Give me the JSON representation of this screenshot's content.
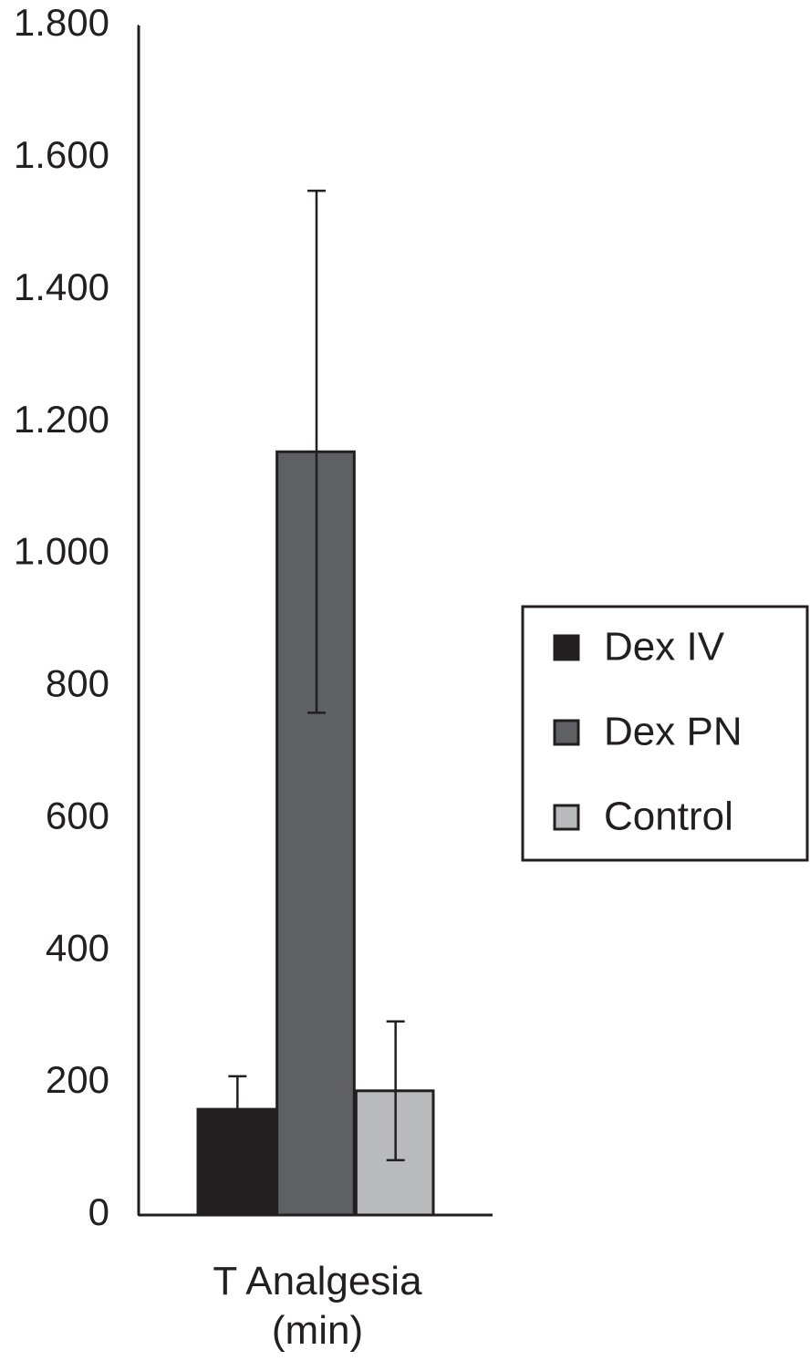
{
  "chart_data": {
    "type": "bar",
    "categories": [
      "T Analgesia (min)"
    ],
    "series": [
      {
        "name": "Dex IV",
        "color": "#231f20",
        "values": [
          160
        ],
        "errors": [
          50
        ]
      },
      {
        "name": "Dex PN",
        "color": "#5e6064",
        "values": [
          1155
        ],
        "errors": [
          395
        ]
      },
      {
        "name": "Control",
        "color": "#b9babb",
        "values": [
          188
        ],
        "errors": [
          105
        ]
      }
    ],
    "ylim": [
      0,
      1800
    ],
    "yticks": [
      0,
      200,
      400,
      600,
      800,
      {
        "value": 1000,
        "label": "1.000"
      },
      {
        "value": 1200,
        "label": "1.200"
      },
      {
        "value": 1400,
        "label": "1.400"
      },
      {
        "value": 1600,
        "label": "1.600"
      },
      {
        "value": 1800,
        "label": "1.800"
      }
    ],
    "legend": "right"
  }
}
